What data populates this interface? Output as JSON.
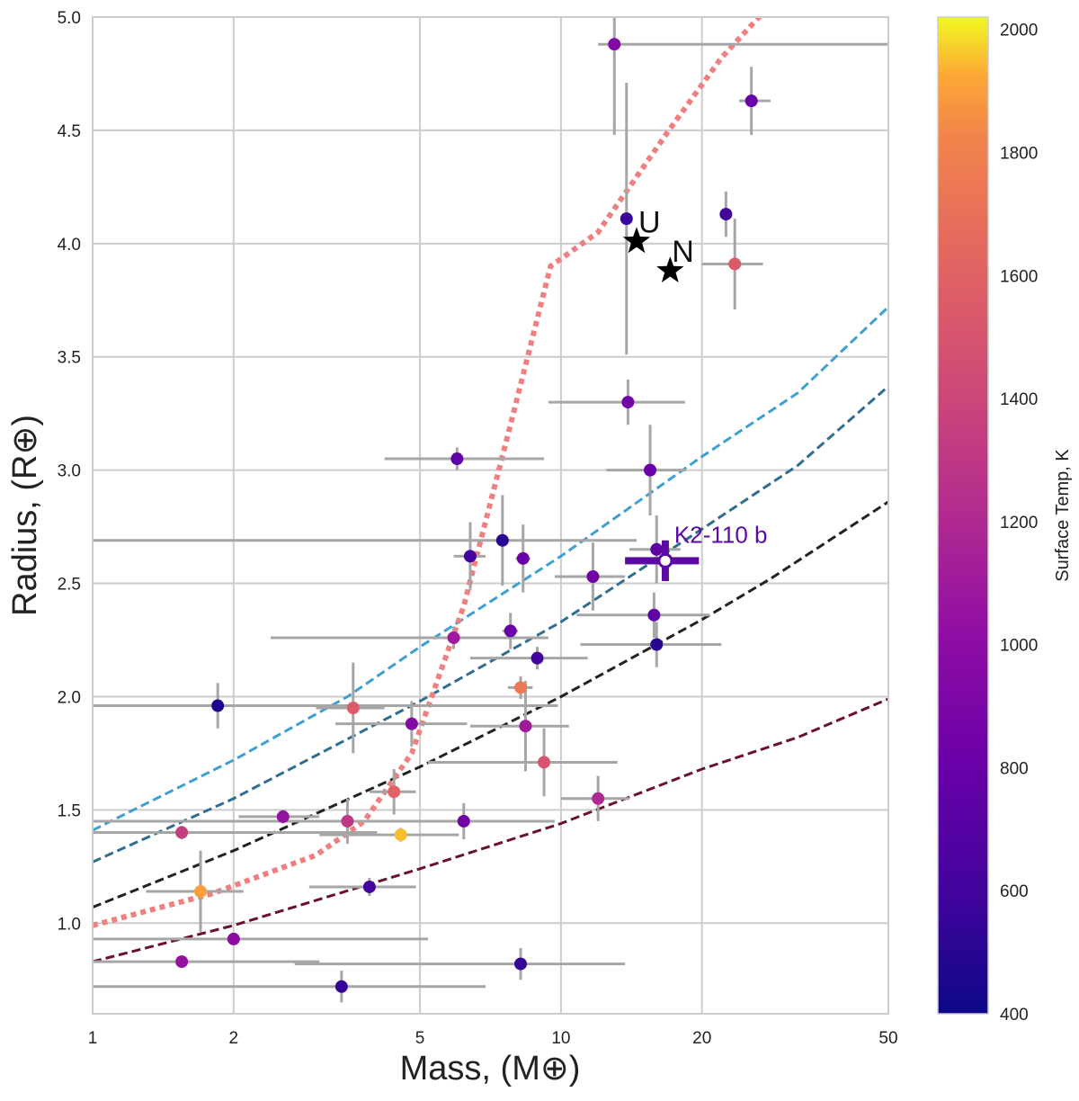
{
  "chart_data": {
    "type": "scatter",
    "title": "",
    "xlabel": "Mass, (M⊕)",
    "ylabel": "Radius, (R⊕)",
    "xscale": "log",
    "xlim": [
      1,
      50
    ],
    "ylim": [
      0.6,
      5.0
    ],
    "x_ticks": [
      1,
      2,
      5,
      10,
      20,
      50
    ],
    "y_ticks": [
      1.0,
      1.5,
      2.0,
      2.5,
      3.0,
      3.5,
      4.0,
      4.5,
      5.0
    ],
    "x_tick_labels": [
      "1",
      "2",
      "5",
      "10",
      "20",
      "50"
    ],
    "y_tick_labels": [
      "1.0",
      "1.5",
      "2.0",
      "2.5",
      "3.0",
      "3.5",
      "4.0",
      "4.5",
      "5.0"
    ],
    "grid": true,
    "colorbar": {
      "label": "Surface Temp, K",
      "min": 400,
      "max": 2020,
      "colormap": "plasma",
      "ticks": [
        400,
        600,
        800,
        1000,
        1200,
        1400,
        1600,
        1800,
        2000
      ],
      "tick_labels": [
        "400",
        "600",
        "800",
        "1000",
        "1200",
        "1400",
        "1600",
        "1800",
        "2000"
      ]
    },
    "points": [
      {
        "mass": 13.0,
        "radius": 4.88,
        "temp": 950,
        "m_err": [
          1.0,
          50
        ],
        "r_err": [
          0.4,
          0.15
        ]
      },
      {
        "mass": 25.5,
        "radius": 4.63,
        "temp": 800,
        "m_err": [
          1.5,
          2.5
        ],
        "r_err": [
          0.15,
          0.15
        ]
      },
      {
        "mass": 22.5,
        "radius": 4.13,
        "temp": 600,
        "m_err": [
          0.5,
          0.5
        ],
        "r_err": [
          0.1,
          0.1
        ]
      },
      {
        "mass": 13.8,
        "radius": 4.11,
        "temp": 560,
        "m_err": [
          0.4,
          0.4
        ],
        "r_err": [
          0.6,
          0.6
        ]
      },
      {
        "mass": 23.5,
        "radius": 3.91,
        "temp": 1550,
        "m_err": [
          3.5,
          3.5
        ],
        "r_err": [
          0.2,
          0.2
        ]
      },
      {
        "mass": 13.9,
        "radius": 3.3,
        "temp": 850,
        "m_err": [
          4.5,
          4.5
        ],
        "r_err": [
          0.1,
          0.1
        ]
      },
      {
        "mass": 15.5,
        "radius": 3.0,
        "temp": 800,
        "m_err": [
          3.0,
          3.0
        ],
        "r_err": [
          0.2,
          0.2
        ]
      },
      {
        "mass": 6.0,
        "radius": 3.05,
        "temp": 750,
        "m_err": [
          1.8,
          3.2
        ],
        "r_err": [
          0.05,
          0.05
        ]
      },
      {
        "mass": 7.5,
        "radius": 2.69,
        "temp": 500,
        "m_err": [
          7.0,
          7.0
        ],
        "r_err": [
          0.2,
          0.2
        ]
      },
      {
        "mass": 6.4,
        "radius": 2.62,
        "temp": 600,
        "m_err": [
          0.5,
          0.5
        ],
        "r_err": [
          0.15,
          0.15
        ]
      },
      {
        "mass": 8.3,
        "radius": 2.61,
        "temp": 800,
        "m_err": [
          0.3,
          0.3
        ],
        "r_err": [
          0.15,
          0.15
        ]
      },
      {
        "mass": 16.0,
        "radius": 2.65,
        "temp": 750,
        "m_err": [
          2.0,
          2.0
        ],
        "r_err": [
          0.15,
          0.15
        ]
      },
      {
        "mass": 11.7,
        "radius": 2.53,
        "temp": 850,
        "m_err": [
          2.0,
          2.0
        ],
        "r_err": [
          0.15,
          0.15
        ]
      },
      {
        "mass": 15.8,
        "radius": 2.36,
        "temp": 750,
        "m_err": [
          5.0,
          5.0
        ],
        "r_err": [
          0.1,
          0.1
        ]
      },
      {
        "mass": 16.0,
        "radius": 2.23,
        "temp": 500,
        "m_err": [
          5.0,
          6.0
        ],
        "r_err": [
          0.1,
          0.1
        ]
      },
      {
        "mass": 7.8,
        "radius": 2.29,
        "temp": 800,
        "m_err": [
          0.3,
          0.3
        ],
        "r_err": [
          0.08,
          0.08
        ]
      },
      {
        "mass": 5.9,
        "radius": 2.26,
        "temp": 1100,
        "m_err": [
          3.5,
          3.5
        ],
        "r_err": [
          0.05,
          0.05
        ]
      },
      {
        "mass": 8.9,
        "radius": 2.17,
        "temp": 600,
        "m_err": [
          2.5,
          2.5
        ],
        "r_err": [
          0.05,
          0.05
        ]
      },
      {
        "mass": 8.2,
        "radius": 2.04,
        "temp": 1750,
        "m_err": [
          0.5,
          0.5
        ],
        "r_err": [
          0.05,
          0.05
        ]
      },
      {
        "mass": 1.85,
        "radius": 1.96,
        "temp": 450,
        "m_err": [
          0.85,
          8.0
        ],
        "r_err": [
          0.1,
          0.1
        ]
      },
      {
        "mass": 3.6,
        "radius": 1.95,
        "temp": 1550,
        "m_err": [
          0.6,
          0.6
        ],
        "r_err": [
          0.2,
          0.2
        ]
      },
      {
        "mass": 4.8,
        "radius": 1.88,
        "temp": 950,
        "m_err": [
          1.5,
          1.5
        ],
        "r_err": [
          0.1,
          0.1
        ]
      },
      {
        "mass": 8.4,
        "radius": 1.87,
        "temp": 1100,
        "m_err": [
          2.0,
          2.0
        ],
        "r_err": [
          0.2,
          0.2
        ]
      },
      {
        "mass": 9.2,
        "radius": 1.71,
        "temp": 1500,
        "m_err": [
          4.0,
          4.0
        ],
        "r_err": [
          0.15,
          0.15
        ]
      },
      {
        "mass": 4.4,
        "radius": 1.58,
        "temp": 1600,
        "m_err": [
          0.5,
          0.5
        ],
        "r_err": [
          0.1,
          0.1
        ]
      },
      {
        "mass": 12.0,
        "radius": 1.55,
        "temp": 1200,
        "m_err": [
          2.0,
          2.0
        ],
        "r_err": [
          0.1,
          0.1
        ]
      },
      {
        "mass": 2.55,
        "radius": 1.47,
        "temp": 1050,
        "m_err": [
          0.5,
          0.5
        ],
        "r_err": [
          0.03,
          0.03
        ]
      },
      {
        "mass": 3.5,
        "radius": 1.45,
        "temp": 1300,
        "m_err": [
          2.5,
          2.5
        ],
        "r_err": [
          0.1,
          0.1
        ]
      },
      {
        "mass": 6.2,
        "radius": 1.45,
        "temp": 850,
        "m_err": [
          3.5,
          3.5
        ],
        "r_err": [
          0.08,
          0.08
        ]
      },
      {
        "mass": 1.55,
        "radius": 1.4,
        "temp": 1350,
        "m_err": [
          0.55,
          2.5
        ],
        "r_err": [
          0.03,
          0.03
        ]
      },
      {
        "mass": 4.55,
        "radius": 1.39,
        "temp": 1950,
        "m_err": [
          1.5,
          1.5
        ],
        "r_err": [
          0.03,
          0.03
        ]
      },
      {
        "mass": 1.7,
        "radius": 1.14,
        "temp": 1900,
        "m_err": [
          0.4,
          0.4
        ],
        "r_err": [
          0.18,
          0.18
        ]
      },
      {
        "mass": 3.9,
        "radius": 1.16,
        "temp": 600,
        "m_err": [
          1.0,
          1.0
        ],
        "r_err": [
          0.04,
          0.04
        ]
      },
      {
        "mass": 2.0,
        "radius": 0.93,
        "temp": 1000,
        "m_err": [
          1.0,
          3.2
        ],
        "r_err": [
          0.02,
          0.02
        ]
      },
      {
        "mass": 1.55,
        "radius": 0.83,
        "temp": 1050,
        "m_err": [
          0.55,
          1.5
        ],
        "r_err": [
          0.02,
          0.02
        ]
      },
      {
        "mass": 8.2,
        "radius": 0.82,
        "temp": 550,
        "m_err": [
          5.5,
          5.5
        ],
        "r_err": [
          0.07,
          0.07
        ]
      },
      {
        "mass": 3.4,
        "radius": 0.72,
        "temp": 550,
        "m_err": [
          2.4,
          3.5
        ],
        "r_err": [
          0.07,
          0.07
        ]
      }
    ],
    "highlight": {
      "label": "K2-110 b",
      "mass": 16.7,
      "radius": 2.6,
      "m_err": [
        3.0,
        3.0
      ],
      "r_err": [
        0.09,
        0.09
      ],
      "color": "#5b0aa3"
    },
    "solar_system": [
      {
        "label": "U",
        "mass": 14.5,
        "radius": 4.01
      },
      {
        "label": "N",
        "mass": 17.1,
        "radius": 3.88
      }
    ],
    "composition_curves": [
      {
        "name": "curve-1",
        "color": "#3fa0d0",
        "points": [
          [
            1,
            1.41
          ],
          [
            2,
            1.72
          ],
          [
            3.5,
            2.0
          ],
          [
            5,
            2.22
          ],
          [
            10,
            2.62
          ],
          [
            20,
            3.06
          ],
          [
            32,
            3.34
          ],
          [
            50,
            3.72
          ]
        ]
      },
      {
        "name": "curve-2",
        "color": "#2f6e90",
        "points": [
          [
            1,
            1.27
          ],
          [
            2,
            1.55
          ],
          [
            5,
            1.98
          ],
          [
            10,
            2.33
          ],
          [
            20,
            2.74
          ],
          [
            32,
            3.02
          ],
          [
            50,
            3.37
          ]
        ]
      },
      {
        "name": "curve-3",
        "color": "#222222",
        "points": [
          [
            1,
            1.07
          ],
          [
            2,
            1.32
          ],
          [
            5,
            1.69
          ],
          [
            10,
            2.0
          ],
          [
            20,
            2.34
          ],
          [
            28,
            2.52
          ],
          [
            50,
            2.86
          ]
        ]
      },
      {
        "name": "curve-4",
        "color": "#6a1030",
        "points": [
          [
            1,
            0.83
          ],
          [
            2,
            0.99
          ],
          [
            5,
            1.24
          ],
          [
            10,
            1.44
          ],
          [
            20,
            1.68
          ],
          [
            32,
            1.82
          ],
          [
            50,
            1.99
          ]
        ]
      }
    ],
    "dotted_curve": {
      "color": "#f08080",
      "points": [
        [
          1,
          0.99
        ],
        [
          1.8,
          1.13
        ],
        [
          3.0,
          1.3
        ],
        [
          3.8,
          1.45
        ],
        [
          4.8,
          1.75
        ],
        [
          6.2,
          2.4
        ],
        [
          7.8,
          3.2
        ],
        [
          9.5,
          3.9
        ],
        [
          12,
          4.05
        ],
        [
          17,
          4.5
        ],
        [
          22,
          4.82
        ],
        [
          27,
          5.02
        ]
      ]
    }
  }
}
